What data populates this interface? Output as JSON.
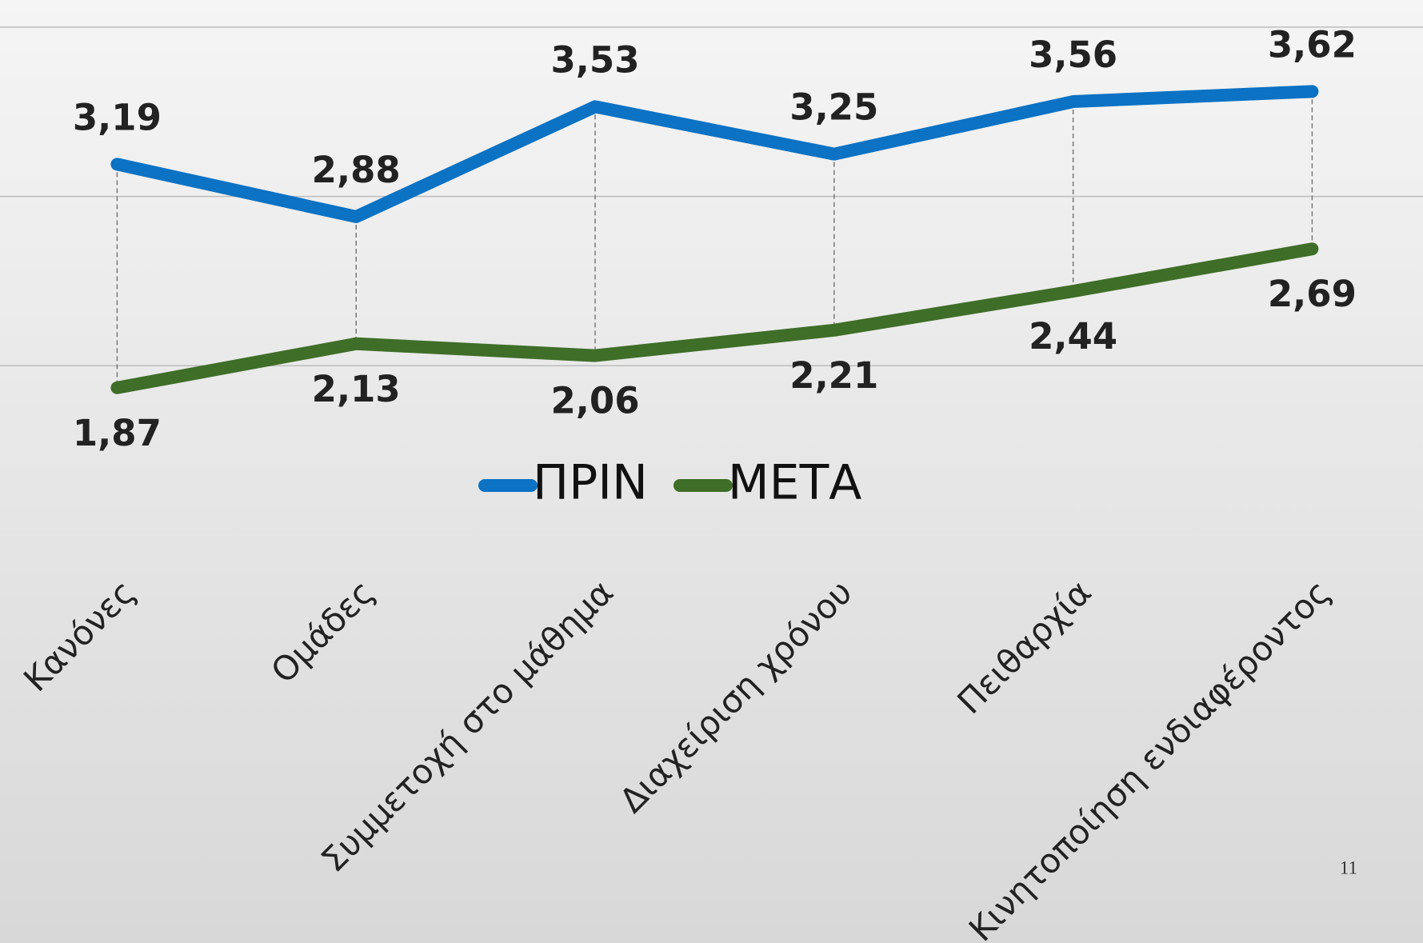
{
  "chart_data": {
    "type": "line",
    "categories": [
      "Κανόνες",
      "Ομάδες",
      "Συμμετοχή στο μάθημα",
      "Διαχείριση χρόνου",
      "Πειθαρχία",
      "Κινητοποίηση ενδιαφέροντος"
    ],
    "series": [
      {
        "name": "ΠΡΙΝ",
        "color": "#0b72c4",
        "values": [
          3.19,
          2.88,
          3.53,
          3.25,
          3.56,
          3.62
        ],
        "value_labels": [
          "3,19",
          "2,88",
          "3,53",
          "3,25",
          "3,56",
          "3,62"
        ]
      },
      {
        "name": "ΜΕΤΑ",
        "color": "#3f6e28",
        "values": [
          1.87,
          2.13,
          2.06,
          2.21,
          2.44,
          2.69
        ],
        "value_labels": [
          "1,87",
          "2,13",
          "2,06",
          "2,21",
          "2,44",
          "2,69"
        ]
      }
    ],
    "ylim": [
      1,
      4.16
    ],
    "yticks": [
      1,
      2,
      3,
      4
    ],
    "grid": true,
    "drop_lines": true,
    "legend": "bottom"
  },
  "slide_number": "11"
}
